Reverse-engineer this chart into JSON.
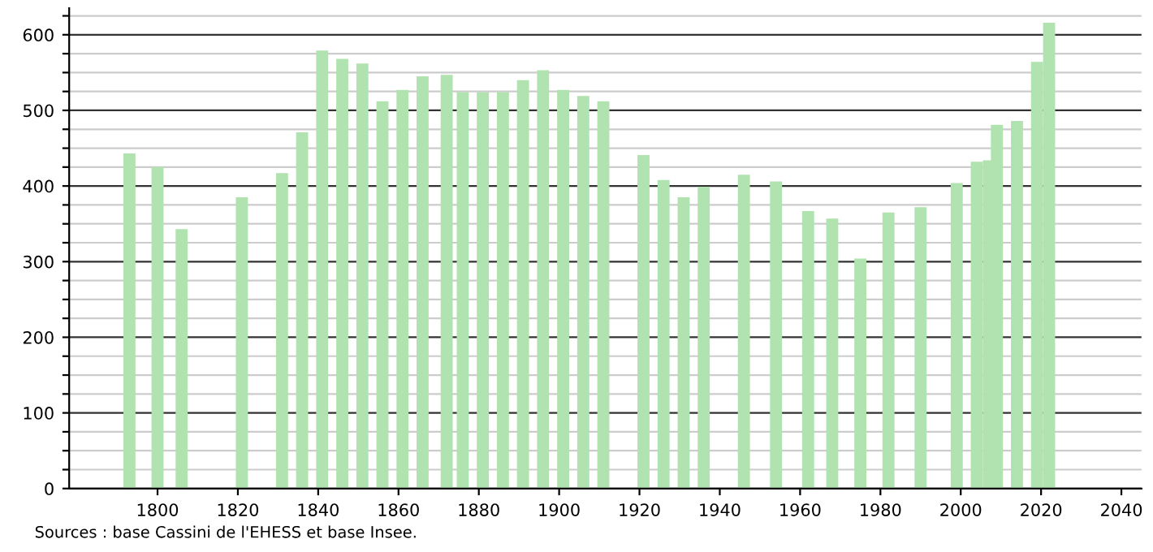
{
  "chart_data": {
    "type": "bar",
    "x": [
      1793,
      1800,
      1806,
      1821,
      1831,
      1836,
      1841,
      1846,
      1851,
      1856,
      1861,
      1866,
      1872,
      1876,
      1881,
      1886,
      1891,
      1896,
      1901,
      1906,
      1911,
      1921,
      1926,
      1931,
      1936,
      1946,
      1954,
      1962,
      1968,
      1975,
      1982,
      1990,
      1999,
      2004,
      2007,
      2009,
      2014,
      2019,
      2022
    ],
    "values": [
      443,
      425,
      343,
      385,
      417,
      471,
      579,
      568,
      562,
      512,
      527,
      545,
      547,
      524,
      524,
      524,
      540,
      553,
      527,
      519,
      512,
      441,
      408,
      385,
      399,
      415,
      406,
      367,
      357,
      304,
      365,
      372,
      404,
      432,
      434,
      481,
      486,
      564,
      616
    ],
    "color": "#b0e3b0",
    "xlim": [
      1778,
      2045
    ],
    "xticks": [
      1800,
      1820,
      1840,
      1860,
      1880,
      1900,
      1920,
      1940,
      1960,
      1980,
      2000,
      2020,
      2040
    ],
    "ylim": [
      0,
      635
    ],
    "yticks": [
      0,
      {
        "value": 25,
        "label": null
      },
      {
        "value": 50,
        "label": null
      },
      {
        "value": 75,
        "label": null
      },
      100,
      {
        "value": 125,
        "label": null
      },
      {
        "value": 150,
        "label": null
      },
      {
        "value": 175,
        "label": null
      },
      200,
      {
        "value": 225,
        "label": null
      },
      {
        "value": 250,
        "label": null
      },
      {
        "value": 275,
        "label": null
      },
      300,
      {
        "value": 325,
        "label": null
      },
      {
        "value": 350,
        "label": null
      },
      {
        "value": 375,
        "label": null
      },
      400,
      {
        "value": 425,
        "label": null
      },
      {
        "value": 450,
        "label": null
      },
      {
        "value": 475,
        "label": null
      },
      500,
      {
        "value": 525,
        "label": null
      },
      {
        "value": 550,
        "label": null
      },
      {
        "value": 575,
        "label": null
      },
      600,
      {
        "value": 625,
        "label": null
      }
    ],
    "grid": "y",
    "annotations": [
      "Sources : base Cassini de l'EHESS et base Insee."
    ]
  }
}
